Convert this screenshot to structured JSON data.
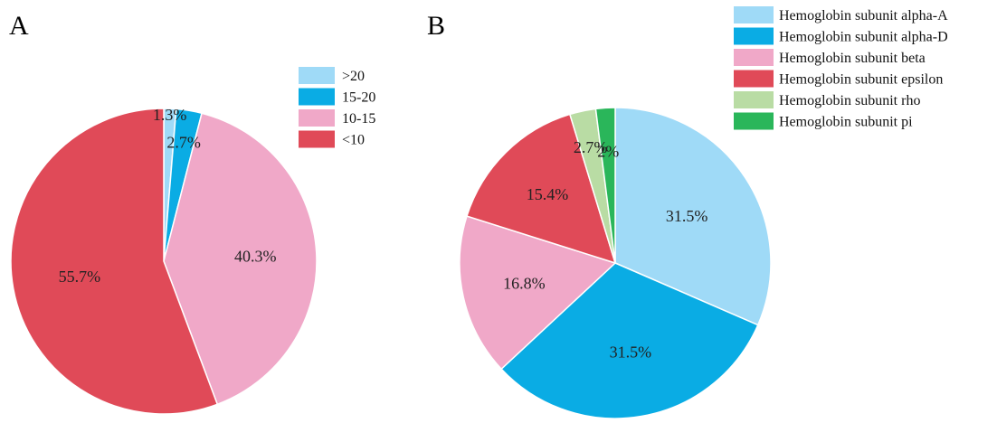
{
  "chart_data": [
    {
      "type": "pie",
      "panel_label": "A",
      "legend_position": "top-right",
      "start_angle": "top",
      "direction": "clockwise",
      "slices": [
        {
          "label": ">20",
          "value": 1.3,
          "display": "1.3%",
          "color": "#9fdaf7"
        },
        {
          "label": "15-20",
          "value": 2.7,
          "display": "2.7%",
          "color": "#0aace4"
        },
        {
          "label": "10-15",
          "value": 40.3,
          "display": "40.3%",
          "color": "#f0a8c8"
        },
        {
          "label": "<10",
          "value": 55.7,
          "display": "55.7%",
          "color": "#e04a58"
        }
      ]
    },
    {
      "type": "pie",
      "panel_label": "B",
      "legend_position": "top-right",
      "start_angle": "top",
      "direction": "clockwise",
      "slices": [
        {
          "label": "Hemoglobin subunit alpha-A",
          "value": 31.5,
          "display": "31.5%",
          "color": "#9fdaf7"
        },
        {
          "label": "Hemoglobin subunit alpha-D",
          "value": 31.5,
          "display": "31.5%",
          "color": "#0aace4"
        },
        {
          "label": "Hemoglobin subunit beta",
          "value": 16.8,
          "display": "16.8%",
          "color": "#f0a8c8"
        },
        {
          "label": "Hemoglobin subunit epsilon",
          "value": 15.4,
          "display": "15.4%",
          "color": "#e04a58"
        },
        {
          "label": "Hemoglobin subunit rho",
          "value": 2.7,
          "display": "2.7%",
          "color": "#b9dca4"
        },
        {
          "label": "Hemoglobin subunit pi",
          "value": 2,
          "display": "2%",
          "color": "#2ab65a"
        }
      ]
    }
  ]
}
